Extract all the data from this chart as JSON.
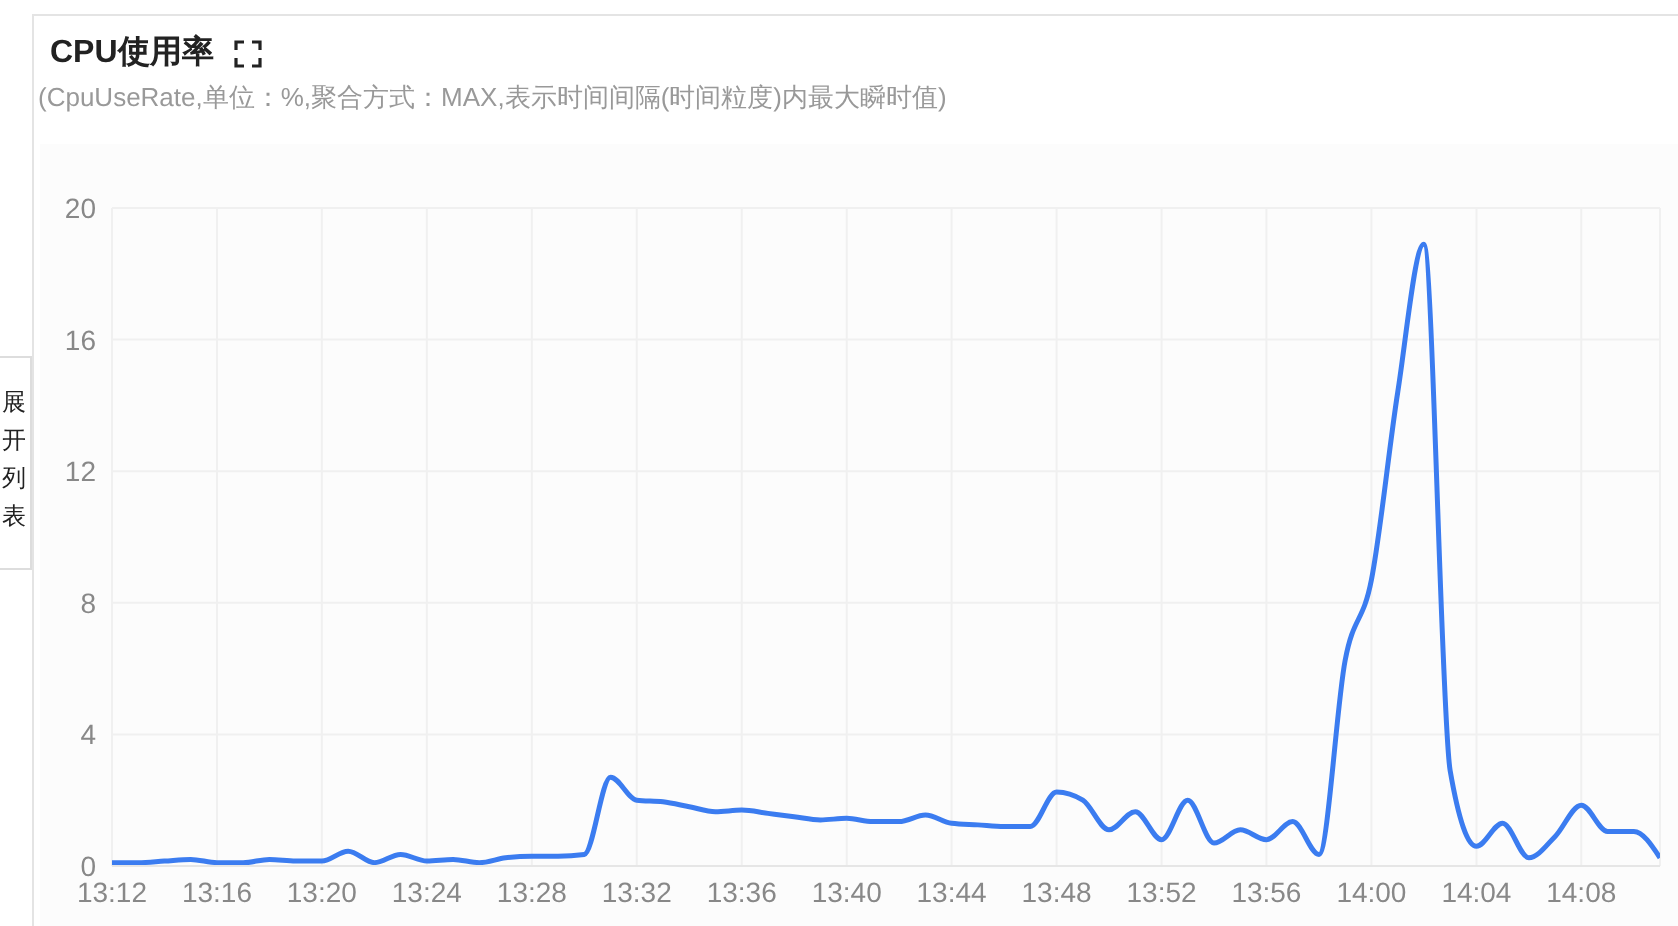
{
  "chart_data": {
    "type": "line",
    "title": "CPU使用率",
    "subtitle": "(CpuUseRate,单位：%,聚合方式：MAX,表示时间间隔(时间粒度)内最大瞬时值)",
    "annotations": [
      "展开列表"
    ],
    "x": [
      13.2,
      13.2167,
      13.2333,
      13.25,
      13.2667,
      13.2833,
      13.3,
      13.3167,
      13.3333,
      13.35,
      13.3667,
      13.3833,
      13.4,
      13.4167,
      13.4333,
      13.45,
      13.4667,
      13.4833,
      13.5,
      13.5167,
      13.5333,
      13.55,
      13.5667,
      13.5833,
      13.6,
      13.6167,
      13.6333,
      13.65,
      13.6667,
      13.6833,
      13.7,
      13.7167,
      13.7333,
      13.75,
      13.7667,
      13.7833,
      13.8,
      13.8167,
      13.8333,
      13.85,
      13.8667,
      13.8833,
      13.9,
      13.9167,
      13.9333,
      13.95,
      13.9667,
      13.9833,
      14.0,
      14.0167,
      14.0333,
      14.05,
      14.0667,
      14.0833,
      14.1,
      14.1167,
      14.1333,
      14.15,
      14.1667,
      14.1833
    ],
    "series": [
      {
        "color": "#3b7cf0",
        "values": [
          0.1,
          0.1,
          0.15,
          0.2,
          0.1,
          0.1,
          0.2,
          0.15,
          0.15,
          0.45,
          0.1,
          0.35,
          0.15,
          0.2,
          0.1,
          0.25,
          0.3,
          0.3,
          0.35,
          2.7,
          2.0,
          1.95,
          1.8,
          1.65,
          1.7,
          1.6,
          1.5,
          1.4,
          1.45,
          1.35,
          1.35,
          1.55,
          1.3,
          1.25,
          1.2,
          1.2,
          2.25,
          2.0,
          1.1,
          1.65,
          0.8,
          2.0,
          0.7,
          1.1,
          0.8,
          1.35,
          0.35,
          6.25,
          8.7,
          14.4,
          18.9,
          2.9,
          0.6,
          1.3,
          0.25,
          0.9,
          1.85,
          1.05,
          1.05,
          0.25
        ]
      }
    ],
    "xlim": [
      13.2,
      14.1833
    ],
    "xticks": [
      {
        "value": 13.2,
        "label": "13:12"
      },
      {
        "value": 13.2667,
        "label": "13:16"
      },
      {
        "value": 13.3333,
        "label": "13:20"
      },
      {
        "value": 13.4,
        "label": "13:24"
      },
      {
        "value": 13.4667,
        "label": "13:28"
      },
      {
        "value": 13.5333,
        "label": "13:32"
      },
      {
        "value": 13.6,
        "label": "13:36"
      },
      {
        "value": 13.6667,
        "label": "13:40"
      },
      {
        "value": 13.7333,
        "label": "13:44"
      },
      {
        "value": 13.8,
        "label": "13:48"
      },
      {
        "value": 13.8667,
        "label": "13:52"
      },
      {
        "value": 13.9333,
        "label": "13:56"
      },
      {
        "value": 14.0,
        "label": "14:00"
      },
      {
        "value": 14.0667,
        "label": "14:04"
      },
      {
        "value": 14.1333,
        "label": "14:08"
      }
    ],
    "ylim": [
      0,
      20
    ],
    "yticks": [
      0,
      4,
      8,
      12,
      16,
      20
    ],
    "grid": true,
    "legend": false
  }
}
